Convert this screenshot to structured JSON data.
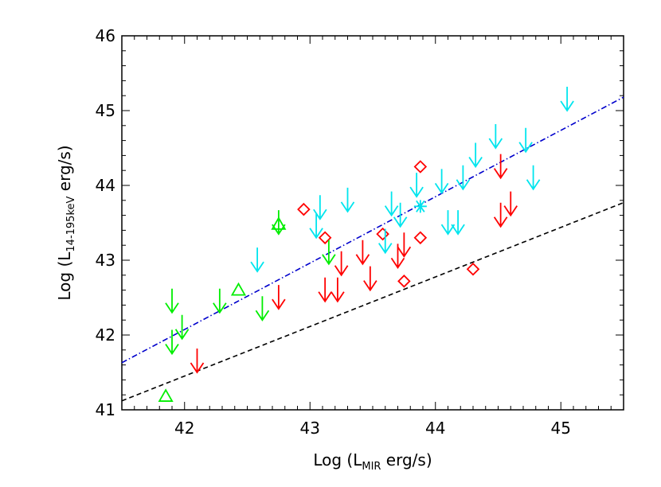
{
  "chart_data": {
    "type": "scatter",
    "title": "",
    "xlabel": {
      "prefix": "Log (L",
      "sub": "MIR",
      "suffix": " erg/s)"
    },
    "ylabel": {
      "prefix": "Log (L",
      "sub": "14-195keV",
      "suffix": " erg/s)"
    },
    "xlim": [
      41.5,
      45.5
    ],
    "ylim": [
      41,
      46
    ],
    "xticks": [
      42,
      43,
      44,
      45
    ],
    "yticks": [
      41,
      42,
      43,
      44,
      45,
      46
    ],
    "xtick_labels": [
      "42",
      "43",
      "44",
      "45"
    ],
    "ytick_labels": [
      "41",
      "42",
      "43",
      "44",
      "45",
      "46"
    ],
    "colors": {
      "red": "#ff0000",
      "green": "#00ee00",
      "cyan": "#00e5ee",
      "blue": "#0000cc",
      "black": "#000000"
    },
    "lines": [
      {
        "name": "blue-fit",
        "style": "dash-dot",
        "color": "#0000cc",
        "x": [
          41.5,
          45.5
        ],
        "y": [
          41.63,
          45.18
        ]
      },
      {
        "name": "black-relation",
        "style": "dashed",
        "color": "#000000",
        "x": [
          41.5,
          45.5
        ],
        "y": [
          41.12,
          43.77
        ]
      }
    ],
    "series": [
      {
        "name": "red-diamonds",
        "marker": "diamond",
        "color": "#ff0000",
        "points": [
          [
            42.95,
            43.68
          ],
          [
            43.12,
            43.3
          ],
          [
            43.58,
            43.35
          ],
          [
            43.75,
            42.72
          ],
          [
            43.88,
            44.25
          ],
          [
            43.88,
            43.3
          ],
          [
            44.3,
            42.88
          ]
        ]
      },
      {
        "name": "red-upper-limits",
        "marker": "down-arrow",
        "color": "#ff0000",
        "points": [
          [
            42.1,
            41.5
          ],
          [
            42.75,
            42.35
          ],
          [
            43.12,
            42.45
          ],
          [
            43.22,
            42.45
          ],
          [
            43.25,
            42.8
          ],
          [
            43.42,
            42.95
          ],
          [
            43.48,
            42.6
          ],
          [
            43.7,
            42.9
          ],
          [
            43.75,
            43.05
          ],
          [
            44.52,
            44.1
          ],
          [
            44.52,
            43.45
          ],
          [
            44.6,
            43.6
          ]
        ]
      },
      {
        "name": "green-triangles",
        "marker": "triangle",
        "color": "#00ee00",
        "points": [
          [
            41.85,
            41.18
          ],
          [
            42.43,
            42.6
          ],
          [
            42.75,
            43.48
          ]
        ]
      },
      {
        "name": "green-upper-limits",
        "marker": "down-arrow",
        "color": "#00ee00",
        "points": [
          [
            41.9,
            42.3
          ],
          [
            41.9,
            41.75
          ],
          [
            41.98,
            41.95
          ],
          [
            42.28,
            42.3
          ],
          [
            42.62,
            42.2
          ],
          [
            42.75,
            43.35
          ],
          [
            43.15,
            42.95
          ]
        ]
      },
      {
        "name": "cyan-upper-limits",
        "marker": "down-arrow",
        "color": "#00e5ee",
        "points": [
          [
            42.58,
            42.85
          ],
          [
            43.05,
            43.3
          ],
          [
            43.08,
            43.55
          ],
          [
            43.3,
            43.65
          ],
          [
            43.6,
            43.1
          ],
          [
            43.65,
            43.6
          ],
          [
            43.72,
            43.45
          ],
          [
            43.85,
            43.85
          ],
          [
            44.05,
            43.9
          ],
          [
            44.1,
            43.35
          ],
          [
            44.18,
            43.35
          ],
          [
            44.22,
            43.95
          ],
          [
            44.32,
            44.25
          ],
          [
            44.48,
            44.5
          ],
          [
            44.72,
            44.45
          ],
          [
            44.78,
            43.95
          ],
          [
            45.05,
            45.0
          ]
        ]
      },
      {
        "name": "cyan-asterisk",
        "marker": "asterisk",
        "color": "#00e5ee",
        "points": [
          [
            43.88,
            43.72
          ]
        ]
      }
    ]
  }
}
